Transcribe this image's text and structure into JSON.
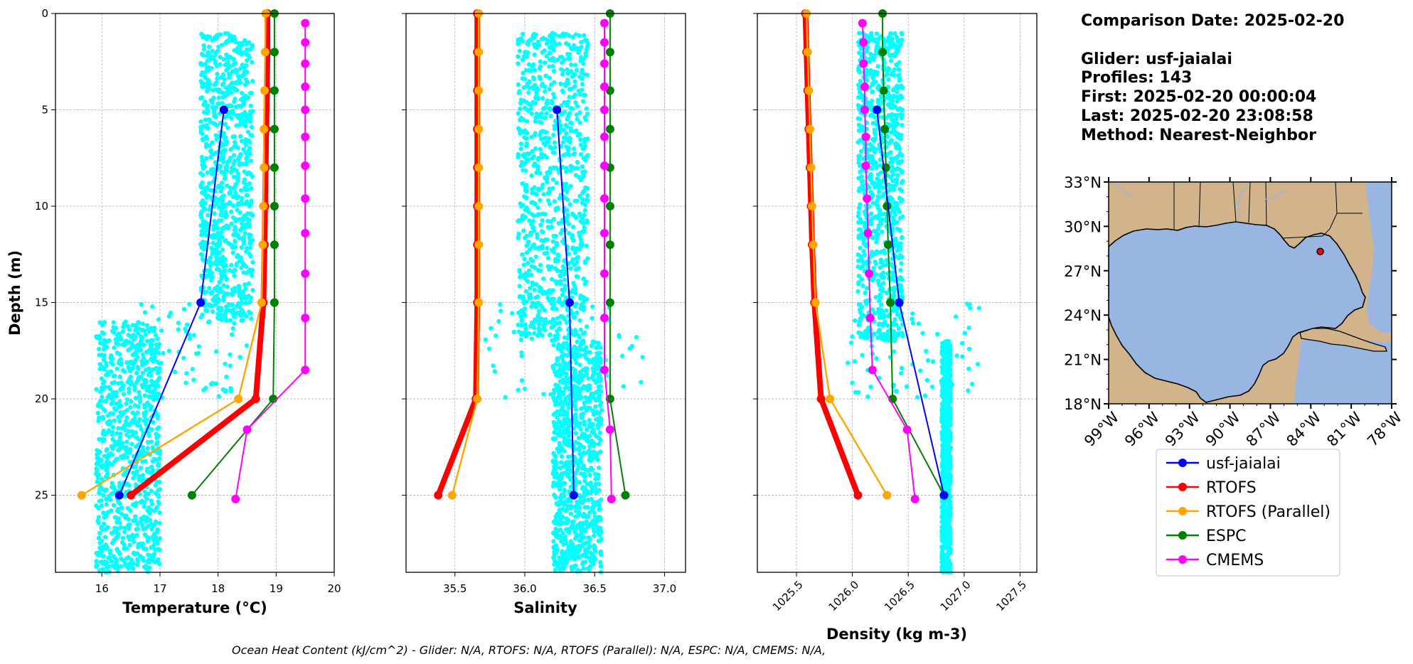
{
  "info": {
    "comparison_date": "Comparison Date: 2025-02-20",
    "glider": "Glider: usf-jaialai",
    "profiles": "Profiles: 143",
    "first": "First: 2025-02-20 00:00:04",
    "last": "Last: 2025-02-20 23:08:58",
    "method": "Method: Nearest-Neighbor"
  },
  "footer": {
    "ohc": "Ocean Heat Content (kJ/cm^2) - Glider: N/A,  RTOFS: N/A,  RTOFS (Parallel): N/A,  ESPC: N/A,  CMEMS: N/A,"
  },
  "colors": {
    "glider_scatter": "#00ffff",
    "usf-jaialai": "#0000ff",
    "RTOFS": "#ff0000",
    "RTOFS (Parallel)": "#ffa500",
    "ESPC": "#008000",
    "CMEMS": "#ff00ff",
    "land": "#d2b48c",
    "ocean": "#99b6e2"
  },
  "legend": {
    "placement": "below-map",
    "entries": [
      {
        "label": "usf-jaialai",
        "color": "#0000ff"
      },
      {
        "label": "RTOFS",
        "color": "#ff0000"
      },
      {
        "label": "RTOFS (Parallel)",
        "color": "#ffa500"
      },
      {
        "label": "ESPC",
        "color": "#008000"
      },
      {
        "label": "CMEMS",
        "color": "#ff00ff"
      }
    ]
  },
  "map": {
    "lat_ticks": [
      "33°N",
      "30°N",
      "27°N",
      "24°N",
      "21°N",
      "18°N"
    ],
    "lon_ticks": [
      "99°W",
      "96°W",
      "93°W",
      "90°W",
      "87°W",
      "84°W",
      "81°W",
      "78°W"
    ],
    "lon_range": [
      -99,
      -78
    ],
    "lat_range": [
      18,
      33
    ],
    "glider_location": {
      "lon": -83.3,
      "lat": 28.3
    }
  },
  "chart_data": [
    {
      "type": "line",
      "xlabel": "Temperature (°C)",
      "ylabel": "Depth (m)",
      "xlim": [
        15.2,
        20
      ],
      "ylim": [
        29,
        0
      ],
      "xticks": [
        "16",
        "17",
        "18",
        "19",
        "20"
      ],
      "yticks": [
        "0",
        "5",
        "10",
        "15",
        "20",
        "25"
      ],
      "grid": true,
      "glider_scatter": {
        "name": "usf-jaialai",
        "clusters": [
          {
            "depth": [
              1,
              16
            ],
            "x": [
              17.7,
              18.6
            ]
          },
          {
            "depth": [
              15,
              20
            ],
            "x": [
              16.5,
              18.5
            ],
            "density": "sparse"
          },
          {
            "depth": [
              16,
              29
            ],
            "x": [
              15.9,
              17.0
            ]
          }
        ]
      },
      "series": [
        {
          "name": "usf-jaialai",
          "depth": [
            5,
            15,
            25
          ],
          "values": [
            18.1,
            17.7,
            16.3
          ]
        },
        {
          "name": "RTOFS",
          "depth": [
            0,
            2,
            4,
            6,
            8,
            10,
            12,
            15,
            20,
            25
          ],
          "values": [
            18.85,
            18.85,
            18.84,
            18.83,
            18.82,
            18.81,
            18.8,
            18.78,
            18.65,
            16.5
          ]
        },
        {
          "name": "RTOFS (Parallel)",
          "depth": [
            0,
            2,
            4,
            6,
            8,
            10,
            12,
            15,
            20,
            25
          ],
          "values": [
            18.82,
            18.81,
            18.8,
            18.79,
            18.79,
            18.78,
            18.77,
            18.75,
            18.35,
            15.65
          ]
        },
        {
          "name": "ESPC",
          "depth": [
            0,
            2,
            4,
            6,
            8,
            10,
            12,
            15,
            20,
            25
          ],
          "values": [
            18.97,
            18.97,
            18.97,
            18.97,
            18.97,
            18.97,
            18.97,
            18.97,
            18.95,
            17.55
          ]
        },
        {
          "name": "CMEMS",
          "depth": [
            0.5,
            1.5,
            2.6,
            3.8,
            5.0,
            6.4,
            7.9,
            9.6,
            11.4,
            13.5,
            15.8,
            18.5,
            21.6,
            25.2
          ],
          "values": [
            19.5,
            19.5,
            19.5,
            19.5,
            19.5,
            19.5,
            19.5,
            19.5,
            19.5,
            19.5,
            19.5,
            19.5,
            18.5,
            18.3
          ]
        }
      ]
    },
    {
      "type": "line",
      "xlabel": "Salinity",
      "ylabel": "",
      "xlim": [
        35.15,
        37.15
      ],
      "ylim": [
        29,
        0
      ],
      "xticks": [
        "35.5",
        "36.0",
        "36.5",
        "37.0"
      ],
      "yticks": [],
      "grid": true,
      "glider_scatter": {
        "name": "usf-jaialai",
        "clusters": [
          {
            "depth": [
              1,
              17
            ],
            "x": [
              35.95,
              36.45
            ]
          },
          {
            "depth": [
              15,
              20
            ],
            "x": [
              35.7,
              36.85
            ],
            "density": "sparse"
          },
          {
            "depth": [
              17,
              29
            ],
            "x": [
              36.2,
              36.55
            ]
          }
        ]
      },
      "series": [
        {
          "name": "usf-jaialai",
          "depth": [
            5,
            15,
            25
          ],
          "values": [
            36.23,
            36.32,
            36.35
          ]
        },
        {
          "name": "RTOFS",
          "depth": [
            0,
            2,
            4,
            6,
            8,
            10,
            12,
            15,
            20,
            25
          ],
          "values": [
            35.66,
            35.66,
            35.66,
            35.66,
            35.66,
            35.66,
            35.66,
            35.66,
            35.65,
            35.38
          ]
        },
        {
          "name": "RTOFS (Parallel)",
          "depth": [
            0,
            2,
            4,
            6,
            8,
            10,
            12,
            15,
            20,
            25
          ],
          "values": [
            35.67,
            35.67,
            35.67,
            35.67,
            35.67,
            35.67,
            35.67,
            35.67,
            35.66,
            35.48
          ]
        },
        {
          "name": "ESPC",
          "depth": [
            0,
            2,
            4,
            6,
            8,
            10,
            12,
            15,
            20,
            25
          ],
          "values": [
            36.61,
            36.61,
            36.61,
            36.61,
            36.61,
            36.61,
            36.61,
            36.61,
            36.61,
            36.72
          ]
        },
        {
          "name": "CMEMS",
          "depth": [
            0.5,
            1.5,
            2.6,
            3.8,
            5.0,
            6.4,
            7.9,
            9.6,
            11.4,
            13.5,
            15.8,
            18.5,
            21.6,
            25.2
          ],
          "values": [
            36.57,
            36.57,
            36.57,
            36.57,
            36.57,
            36.57,
            36.57,
            36.57,
            36.57,
            36.57,
            36.57,
            36.57,
            36.61,
            36.62
          ]
        }
      ]
    },
    {
      "type": "line",
      "xlabel": "Density (kg m-3)",
      "ylabel": "",
      "xlim": [
        1025.15,
        1027.65
      ],
      "ylim": [
        29,
        0
      ],
      "xticks": [
        "1025.5",
        "1026.0",
        "1026.5",
        "1027.0",
        "1027.5"
      ],
      "yticks": [],
      "grid": true,
      "glider_scatter": {
        "name": "usf-jaialai",
        "clusters": [
          {
            "depth": [
              1,
              17
            ],
            "x": [
              1026.05,
              1026.45
            ]
          },
          {
            "depth": [
              15,
              20
            ],
            "x": [
              1025.9,
              1027.15
            ],
            "density": "sparse"
          },
          {
            "depth": [
              17,
              29
            ],
            "x": [
              1026.8,
              1026.88
            ]
          }
        ]
      },
      "series": [
        {
          "name": "usf-jaialai",
          "depth": [
            5,
            15,
            25
          ],
          "values": [
            1026.22,
            1026.42,
            1026.82
          ]
        },
        {
          "name": "RTOFS",
          "depth": [
            0,
            2,
            4,
            6,
            8,
            10,
            12,
            15,
            20,
            25
          ],
          "values": [
            1025.58,
            1025.59,
            1025.6,
            1025.61,
            1025.62,
            1025.63,
            1025.64,
            1025.66,
            1025.72,
            1026.05
          ]
        },
        {
          "name": "RTOFS (Parallel)",
          "depth": [
            0,
            2,
            4,
            6,
            8,
            10,
            12,
            15,
            20,
            25
          ],
          "values": [
            1025.59,
            1025.6,
            1025.61,
            1025.62,
            1025.63,
            1025.64,
            1025.65,
            1025.67,
            1025.8,
            1026.31
          ]
        },
        {
          "name": "ESPC",
          "depth": [
            0,
            2,
            4,
            6,
            8,
            10,
            12,
            15,
            20,
            25
          ],
          "values": [
            1026.27,
            1026.27,
            1026.28,
            1026.29,
            1026.3,
            1026.31,
            1026.32,
            1026.34,
            1026.36,
            1026.82
          ]
        },
        {
          "name": "CMEMS",
          "depth": [
            0.5,
            1.5,
            2.6,
            3.8,
            5.0,
            6.4,
            7.9,
            9.6,
            11.4,
            13.5,
            15.8,
            18.5,
            21.6,
            25.2
          ],
          "values": [
            1026.09,
            1026.1,
            1026.1,
            1026.11,
            1026.11,
            1026.12,
            1026.12,
            1026.13,
            1026.14,
            1026.15,
            1026.16,
            1026.18,
            1026.49,
            1026.56
          ]
        }
      ]
    }
  ]
}
